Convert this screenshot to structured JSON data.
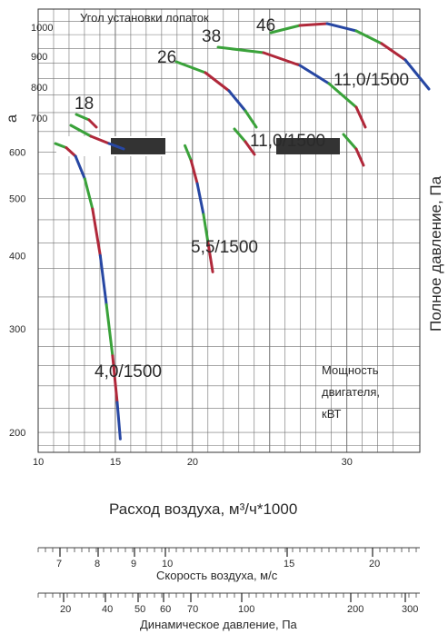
{
  "chart_data": {
    "type": "line",
    "inset_label": "Угол установки лопаток",
    "blade_angles": [
      "18",
      "26",
      "38",
      "46"
    ],
    "motor_power_note": "Мощность двигателя, кВТ",
    "x_label": "Расход воздуха, м³/ч*1000",
    "y_label": "Полное давление, Па",
    "y_label_stub": "а",
    "x_ticks": [
      "10",
      "15",
      "20",
      "30"
    ],
    "x_lim": [
      10,
      33
    ],
    "y_ticks": [
      "200",
      "300",
      "400",
      "500",
      "600"
    ],
    "y_ticks_top": [
      "700",
      "800",
      "900",
      "1000"
    ],
    "y_scale": "log",
    "y_lim": [
      185,
      1050
    ],
    "series": [
      {
        "name": "4,0/1500",
        "x": [
          12.3,
          13.0,
          13.6,
          14.2,
          14.7,
          15.2,
          15.6,
          16.0,
          16.3,
          16.5
        ],
        "y": [
          620,
          610,
          590,
          540,
          480,
          400,
          330,
          270,
          225,
          195
        ]
      },
      {
        "name": "5,5/1500",
        "x": [
          20.1,
          20.5,
          20.9,
          21.3,
          21.6,
          21.9
        ],
        "y": [
          615,
          580,
          530,
          470,
          420,
          375
        ]
      },
      {
        "name": "11,0/1500",
        "x": [
          21.5,
          23.5,
          25.5,
          27.5,
          29.5,
          31.5,
          33.0
        ],
        "y": [
          1005,
          1010,
          1000,
          960,
          900,
          830,
          780
        ]
      }
    ],
    "blade_curves": [
      {
        "name": "18",
        "x": [
          12.0,
          12.8
        ],
        "y": [
          720,
          680
        ]
      },
      {
        "name": "26",
        "x": [
          15.2,
          17.0,
          19.0,
          20.2
        ],
        "y": [
          890,
          870,
          790,
          700
        ]
      },
      {
        "name": "38",
        "x": [
          18.0,
          21.0,
          24.0,
          27.0,
          29.2
        ],
        "y": [
          940,
          930,
          880,
          800,
          700
        ]
      },
      {
        "name": "46",
        "x": [
          21.5,
          24.0,
          27.0,
          29.5,
          33.0
        ],
        "y": [
          1005,
          1012,
          995,
          930,
          790
        ]
      }
    ],
    "curve_labels": [
      "4,0/1500",
      "5,5/1500",
      "11,0/1500",
      "11,0/1500"
    ],
    "scale_speed": {
      "label": "Скорость воздуха, м/с",
      "ticks": [
        "7",
        "8",
        "9",
        "10",
        "15",
        "20"
      ]
    },
    "scale_dynamic": {
      "label": "Динамическое давление, Па",
      "ticks": [
        "20",
        "40",
        "50",
        "60",
        "70",
        "100",
        "200",
        "300"
      ]
    },
    "grid": true,
    "colors": {
      "green": "#3aa23a",
      "red": "#b0283a",
      "blue": "#2747a3",
      "grid": "#707070"
    }
  }
}
